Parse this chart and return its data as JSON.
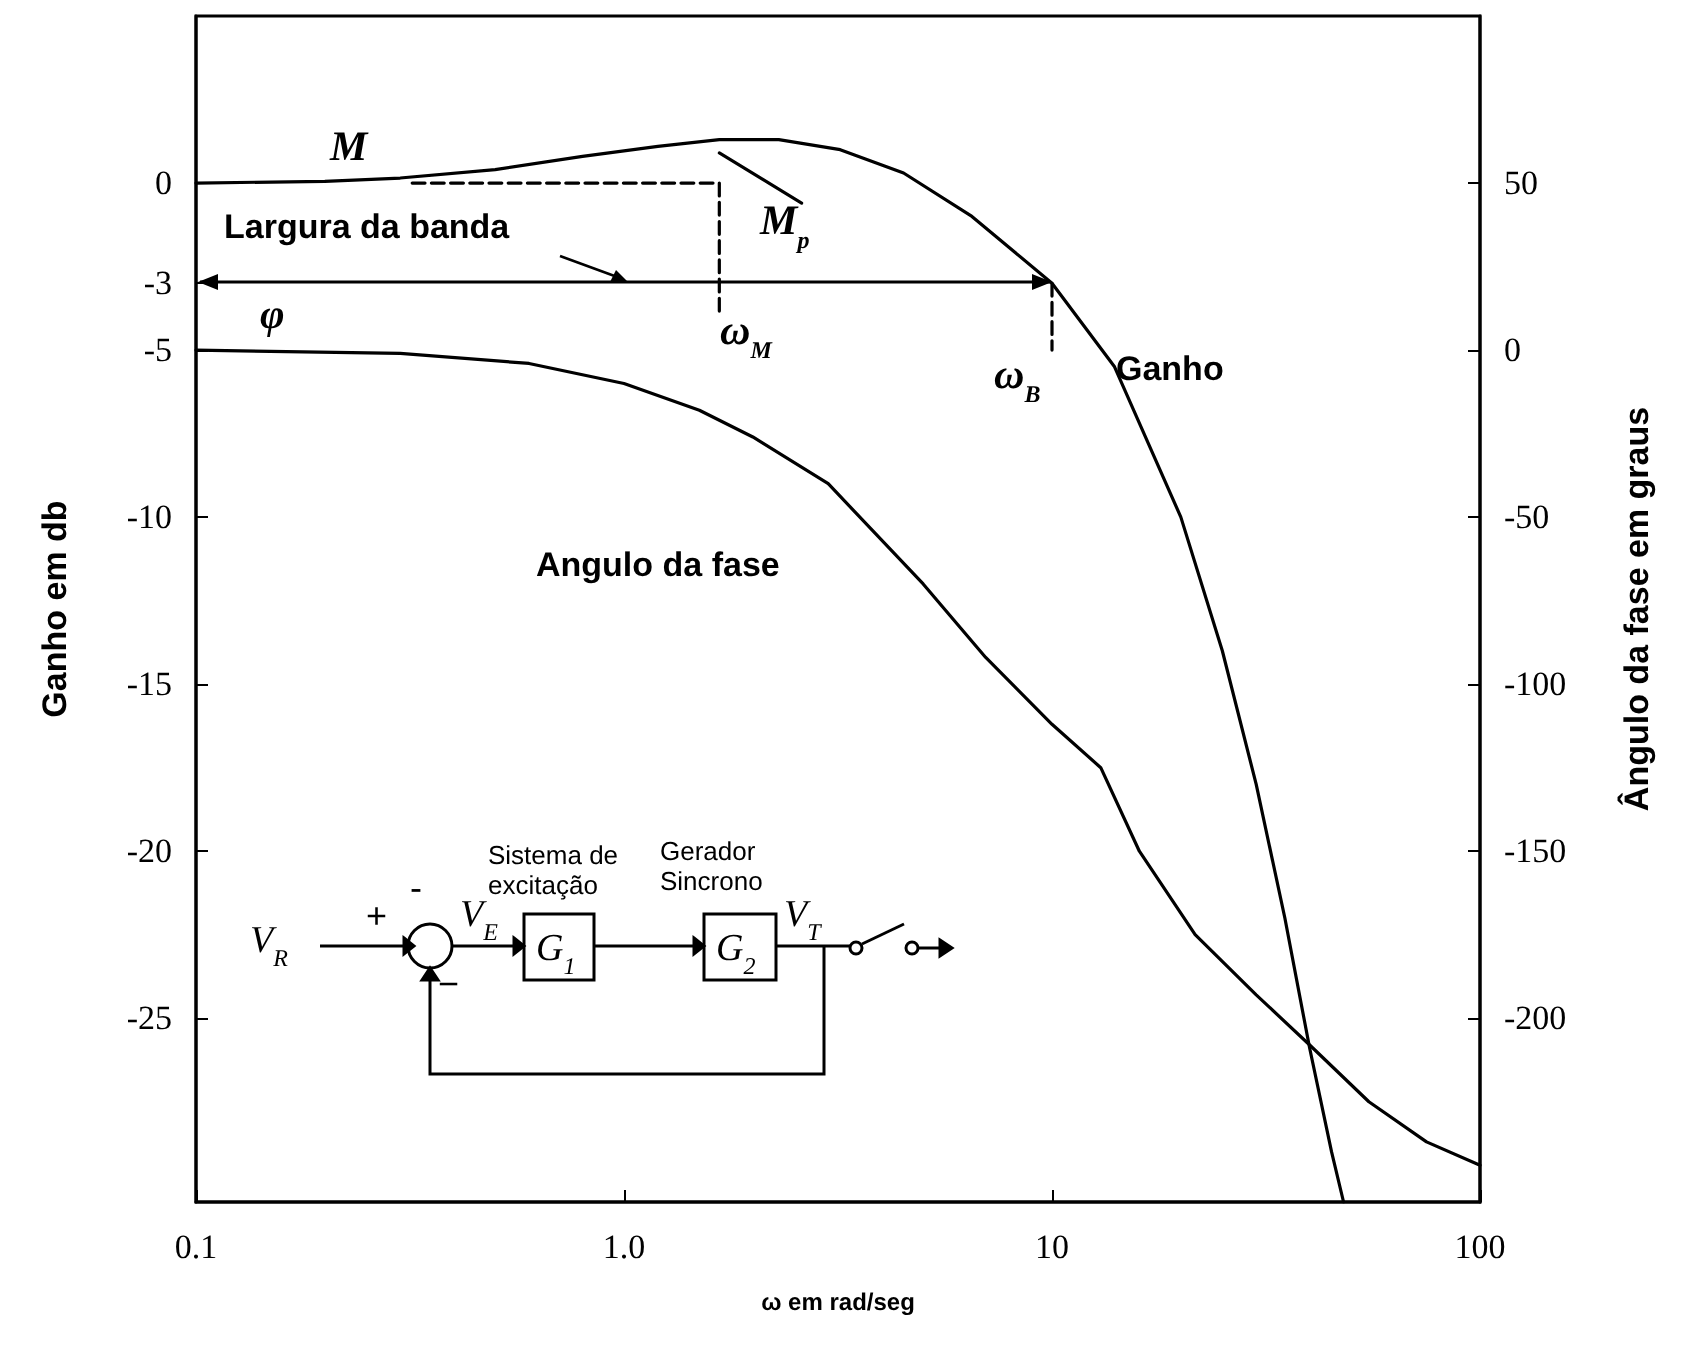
{
  "chart_data": {
    "type": "line",
    "xlabel": "ω em rad/seg",
    "ylabel": "Ganho em db",
    "y2label": "Ângulo da fase em graus",
    "log": "x",
    "xlim": [
      0.1,
      100
    ],
    "xticks": [
      0.1,
      {
        "value": 1,
        "label": "1.0"
      },
      10,
      100
    ],
    "ylim": [
      -30.5,
      5
    ],
    "yticks": [
      0,
      -3,
      -5,
      -10,
      -15,
      -20,
      -25
    ],
    "y2lim": [
      -255,
      100
    ],
    "y2ticks": [
      50,
      0,
      -50,
      -100,
      -150,
      -200
    ],
    "marker": "none",
    "line_style": "solid",
    "series": [
      {
        "color": "#000000",
        "x": [
          0.1,
          0.2,
          0.3,
          0.5,
          0.8,
          1.2,
          1.67,
          2.3,
          3.2,
          4.5,
          6.5,
          10,
          14,
          20,
          25,
          30,
          35,
          40,
          45,
          48
        ],
        "values": [
          0,
          0.05,
          0.15,
          0.4,
          0.8,
          1.1,
          1.3,
          1.3,
          1.0,
          0.3,
          -1,
          -3,
          -5.5,
          -10,
          -14,
          -18,
          -22,
          -25.9,
          -29,
          -30.5
        ]
      },
      {
        "color": "#000000",
        "axis": "y2",
        "x": [
          0.1,
          0.3,
          0.6,
          1,
          1.5,
          2,
          3,
          5,
          7,
          10,
          13,
          16,
          21.6,
          30,
          40,
          55,
          75,
          100
        ],
        "values": [
          0,
          -1,
          -4,
          -10,
          -18,
          -26,
          -40,
          -70,
          -92,
          -112,
          -125,
          -150,
          -175,
          -193,
          -208,
          -225,
          -237,
          -244
        ]
      },
      {
        "color": "#000000",
        "line_style": "dashed",
        "x": [
          0.32,
          1.67,
          1.67
        ],
        "values": [
          0,
          0,
          -4
        ]
      },
      {
        "color": "#000000",
        "line_style": "dashed",
        "x": [
          10,
          10
        ],
        "values": [
          -3,
          -5
        ]
      },
      {
        "color": "#000000",
        "x": [
          1.67,
          2.6
        ],
        "values": [
          0.9,
          -0.6
        ]
      }
    ],
    "annotations": [
      "M",
      "M$_{p}$",
      "Largura da banda",
      "φ",
      "ω$_{M}$",
      "ω$_{B}$",
      "Ganho",
      "Angulo da fase",
      "Sistema de excitação",
      "Gerador Sincrono",
      "V$_{R}$",
      "V$_{E}$",
      "G$_{1}$",
      "G$_{2}$",
      "V$_{T}$",
      "+",
      "-",
      "−"
    ]
  }
}
